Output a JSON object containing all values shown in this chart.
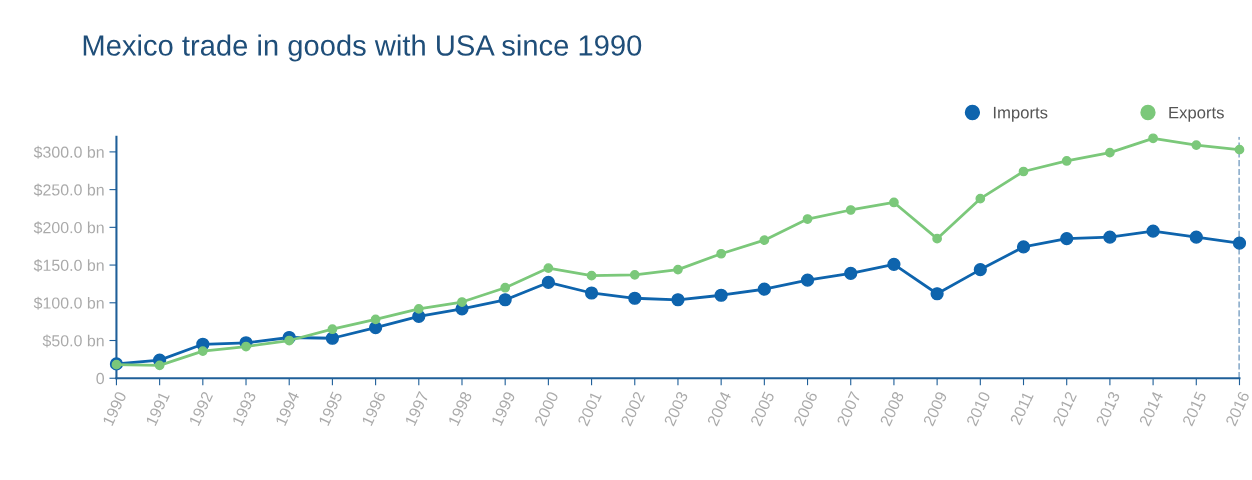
{
  "chart_data": {
    "type": "line",
    "title": "Mexico trade in goods with USA since 1990",
    "x": [
      1990,
      1991,
      1992,
      1993,
      1994,
      1995,
      1996,
      1997,
      1998,
      1999,
      2000,
      2001,
      2002,
      2003,
      2004,
      2005,
      2006,
      2007,
      2008,
      2009,
      2010,
      2011,
      2012,
      2013,
      2014,
      2015,
      2016
    ],
    "series": [
      {
        "name": "Imports",
        "color": "#0e64ad",
        "values": [
          19,
          24,
          45,
          47,
          54,
          53,
          67,
          82,
          92,
          104,
          127,
          113,
          106,
          104,
          110,
          118,
          130,
          139,
          151,
          112,
          144,
          174,
          185,
          187,
          195,
          187,
          179
        ]
      },
      {
        "name": "Exports",
        "color": "#7bc87a",
        "values": [
          18,
          17,
          36,
          42,
          50,
          65,
          78,
          92,
          101,
          120,
          146,
          136,
          137,
          144,
          165,
          183,
          211,
          223,
          233,
          185,
          238,
          274,
          288,
          299,
          318,
          309,
          303
        ]
      }
    ],
    "xlim": [
      1990,
      2016
    ],
    "xticks": [
      1990,
      1991,
      1992,
      1993,
      1994,
      1995,
      1996,
      1997,
      1998,
      1999,
      2000,
      2001,
      2002,
      2003,
      2004,
      2005,
      2006,
      2007,
      2008,
      2009,
      2010,
      2011,
      2012,
      2013,
      2014,
      2015,
      2016
    ],
    "ylim": [
      0,
      320
    ],
    "yticks": [
      {
        "value": 0,
        "label": "0"
      },
      {
        "value": 50,
        "label": "$50.0 bn"
      },
      {
        "value": 100,
        "label": "$100.0 bn"
      },
      {
        "value": 150,
        "label": "$150.0 bn"
      },
      {
        "value": 200,
        "label": "$200.0 bn"
      },
      {
        "value": 250,
        "label": "$250.0 bn"
      },
      {
        "value": 300,
        "label": "$300.0 bn"
      }
    ],
    "ref_lines": [
      {
        "axis": "x",
        "value": 2016,
        "label": null,
        "color": "#1f5f99",
        "line_style": "dashed"
      }
    ],
    "grid": false,
    "legend": "top right",
    "marker": "circle",
    "line_style": "solid"
  }
}
